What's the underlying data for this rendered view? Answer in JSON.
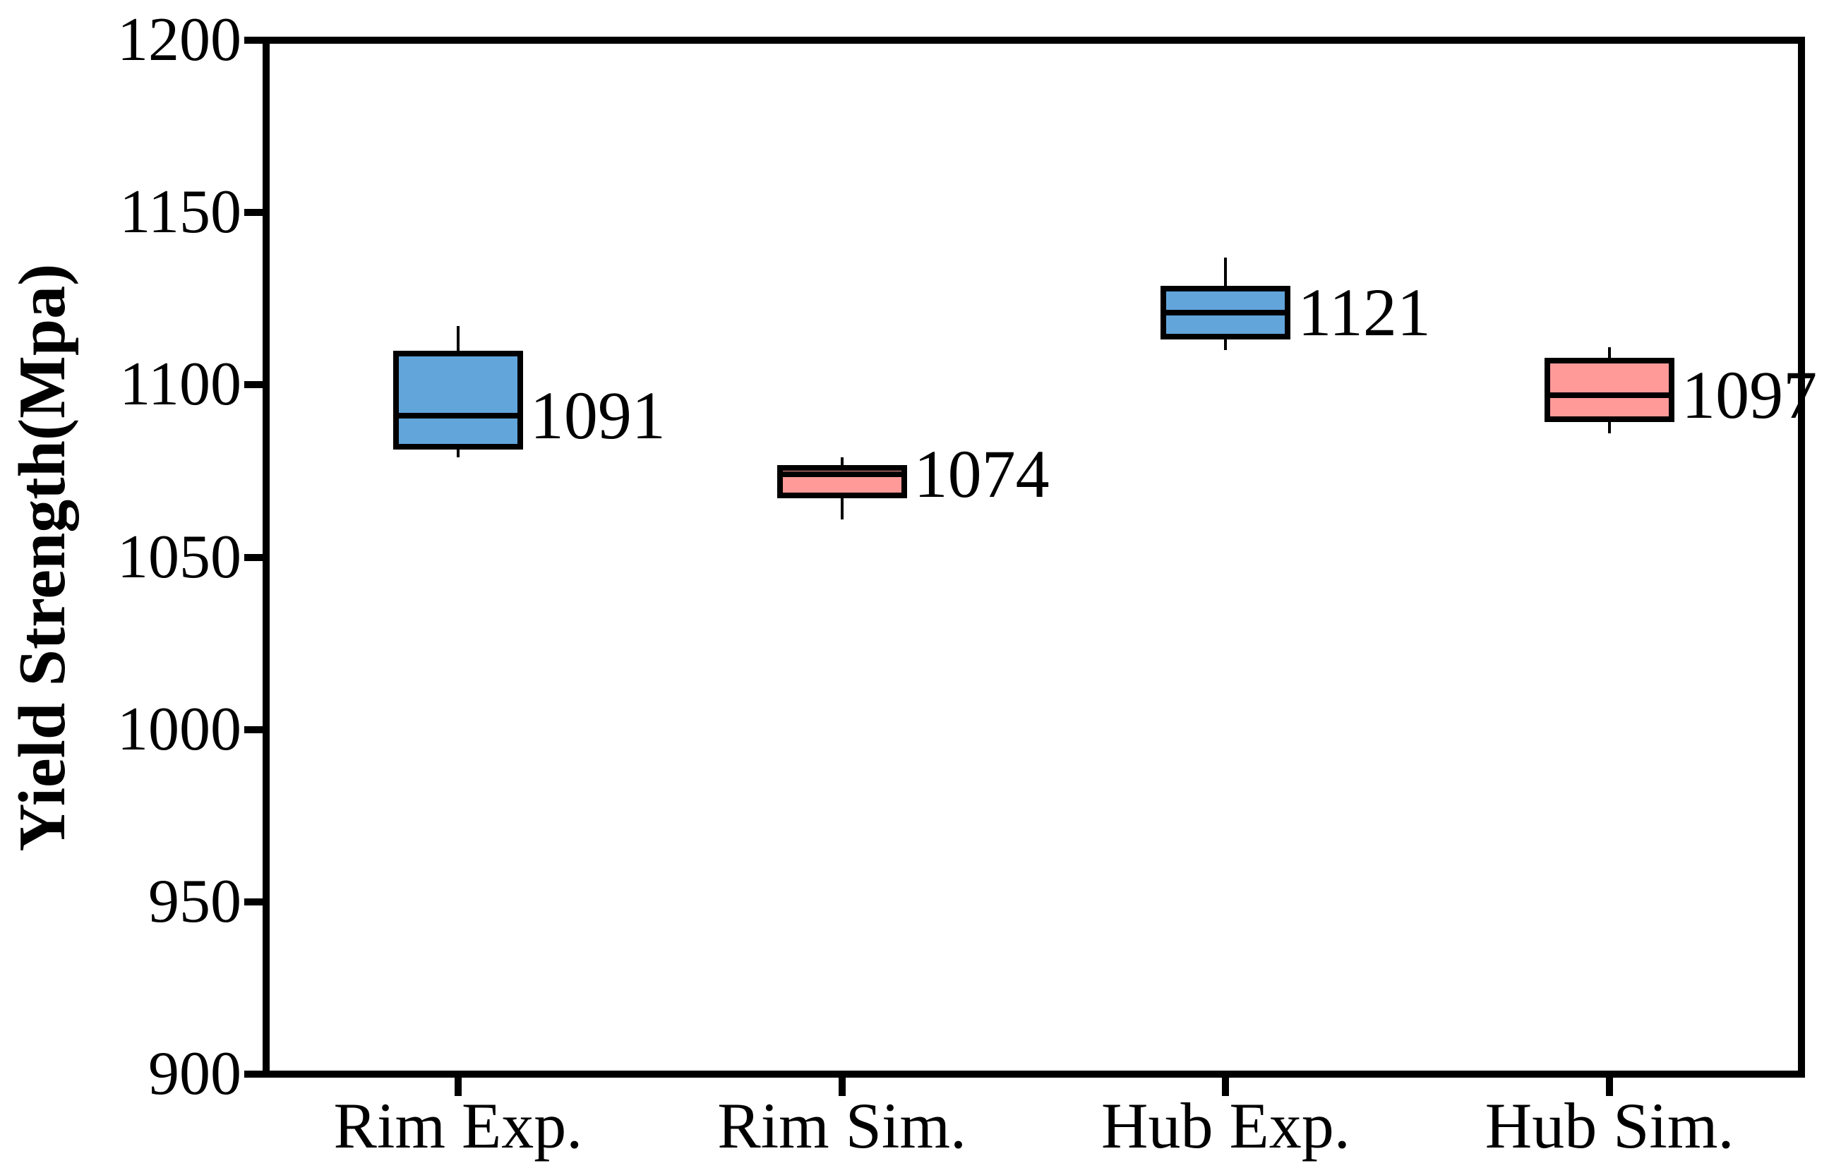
{
  "chart_data": {
    "type": "box",
    "title": "",
    "xlabel": "",
    "ylabel": "Yield Strength(Mpa)",
    "ylim": [
      900,
      1200
    ],
    "ytick_step": 50,
    "yticks": [
      1200,
      1150,
      1100,
      1050,
      1000,
      950,
      900
    ],
    "ytick_labels": [
      "1200",
      "1150",
      "1100",
      "1050",
      "1000",
      "950",
      "900"
    ],
    "categories": [
      "Rim Exp.",
      "Rim Sim.",
      "Hub Exp.",
      "Hub Sim."
    ],
    "grid": false,
    "legend_position": "none",
    "boxes": [
      {
        "category": "Rim Exp.",
        "fill": "#62A5DB",
        "whisker_low": 1079,
        "q1": 1082,
        "median": 1091,
        "q3": 1109,
        "whisker_high": 1117,
        "value_label": "1091"
      },
      {
        "category": "Rim Sim.",
        "fill": "#FF9A98",
        "whisker_low": 1061,
        "q1": 1068,
        "median": 1074,
        "q3": 1076,
        "whisker_high": 1079,
        "value_label": "1074"
      },
      {
        "category": "Hub Exp.",
        "fill": "#62A5DB",
        "whisker_low": 1110,
        "q1": 1114,
        "median": 1121,
        "q3": 1128,
        "whisker_high": 1137,
        "value_label": "1121"
      },
      {
        "category": "Hub Sim.",
        "fill": "#FF9A98",
        "whisker_low": 1086,
        "q1": 1090,
        "median": 1097,
        "q3": 1107,
        "whisker_high": 1111,
        "value_label": "1097"
      }
    ],
    "colors": {
      "box_blue": "#62A5DB",
      "box_pink": "#FF9A98",
      "line": "#000000",
      "background": "#FFFFFF"
    }
  }
}
